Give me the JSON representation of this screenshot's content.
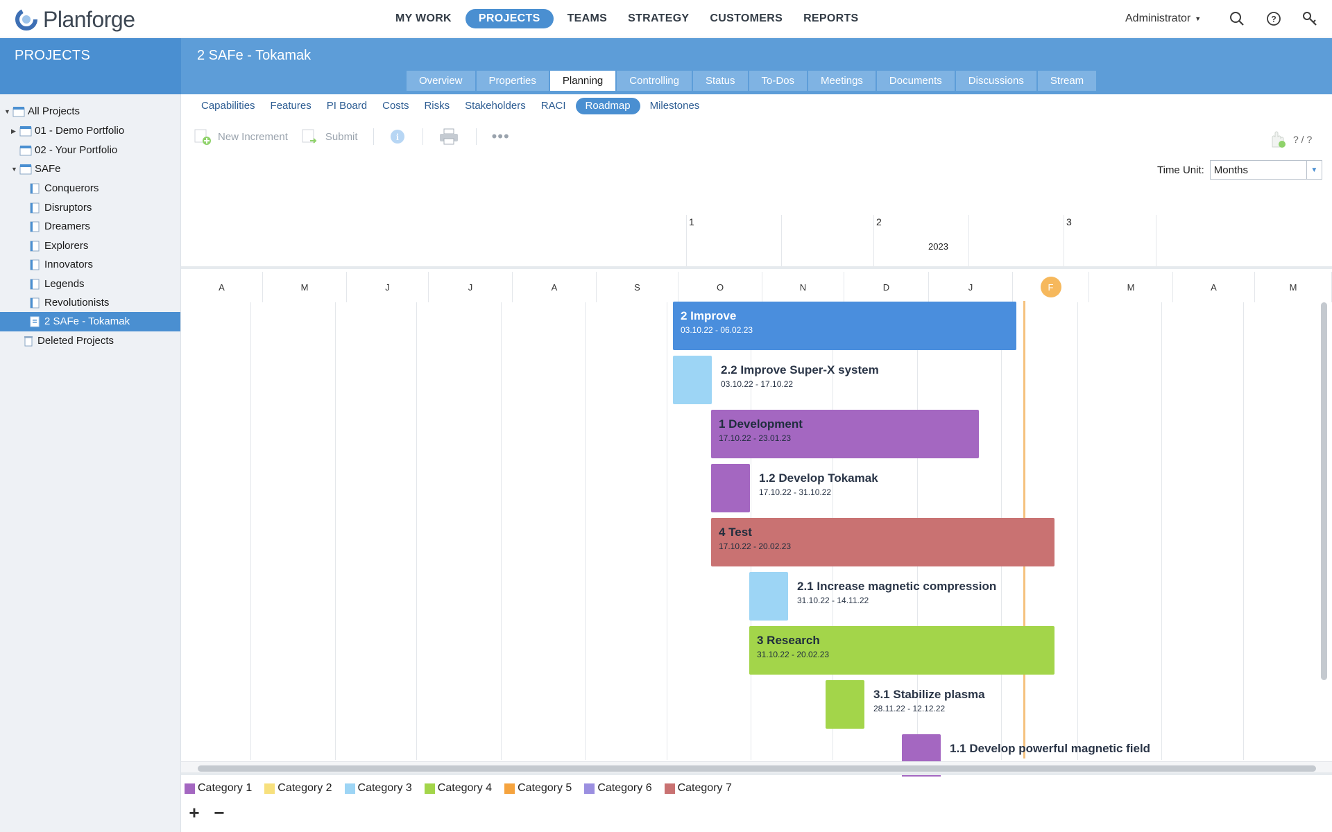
{
  "app": {
    "name": "Planforge"
  },
  "topnav": [
    {
      "label": "MY WORK",
      "active": false
    },
    {
      "label": "PROJECTS",
      "active": true
    },
    {
      "label": "TEAMS",
      "active": false
    },
    {
      "label": "STRATEGY",
      "active": false
    },
    {
      "label": "CUSTOMERS",
      "active": false
    },
    {
      "label": "REPORTS",
      "active": false
    }
  ],
  "user": {
    "label": "Administrator"
  },
  "sidebar": {
    "title": "PROJECTS",
    "items": [
      {
        "label": "All Projects",
        "expanded": true
      },
      {
        "label": "01 - Demo Portfolio",
        "expanded": false
      },
      {
        "label": "02 - Your Portfolio"
      },
      {
        "label": "SAFe",
        "expanded": true
      },
      {
        "label": "Conquerors"
      },
      {
        "label": "Disruptors"
      },
      {
        "label": "Dreamers"
      },
      {
        "label": "Explorers"
      },
      {
        "label": "Innovators"
      },
      {
        "label": "Legends"
      },
      {
        "label": "Revolutionists"
      },
      {
        "label": "2 SAFe - Tokamak",
        "selected": true
      },
      {
        "label": "Deleted Projects"
      }
    ]
  },
  "project": {
    "title": "2 SAFe - Tokamak"
  },
  "tabs": [
    "Overview",
    "Properties",
    "Planning",
    "Controlling",
    "Status",
    "To-Dos",
    "Meetings",
    "Documents",
    "Discussions",
    "Stream"
  ],
  "active_tab": "Planning",
  "subnav": [
    "Capabilities",
    "Features",
    "PI Board",
    "Costs",
    "Risks",
    "Stakeholders",
    "RACI",
    "Roadmap",
    "Milestones"
  ],
  "active_subnav": "Roadmap",
  "toolbar": {
    "new_increment": "New Increment",
    "submit": "Submit",
    "help_count": "? / ?"
  },
  "time_unit": {
    "label": "Time Unit:",
    "value": "Months"
  },
  "timeline": {
    "quarters": [
      "1",
      "2",
      "3"
    ],
    "year": "2023",
    "months": [
      "A",
      "M",
      "J",
      "J",
      "A",
      "S",
      "O",
      "N",
      "D",
      "J",
      "F",
      "M",
      "A",
      "M"
    ],
    "today_month": "F"
  },
  "roadmap_items": [
    {
      "name": "2 Improve",
      "dates": "03.10.22 - 06.02.23",
      "category": 3,
      "color": "#4a8edd"
    },
    {
      "name": "2.2 Improve Super-X system",
      "dates": "03.10.22 - 17.10.22",
      "category": 3,
      "color": "#9dd5f5"
    },
    {
      "name": "1 Development",
      "dates": "17.10.22 - 23.01.23",
      "category": 1,
      "color": "#a467c1"
    },
    {
      "name": "1.2 Develop Tokamak",
      "dates": "17.10.22 - 31.10.22",
      "category": 1,
      "color": "#a467c1"
    },
    {
      "name": "4 Test",
      "dates": "17.10.22 - 20.02.23",
      "category": 7,
      "color": "#c97272"
    },
    {
      "name": "2.1 Increase magnetic compression",
      "dates": "31.10.22 - 14.11.22",
      "category": 3,
      "color": "#9dd5f5"
    },
    {
      "name": "3 Research",
      "dates": "31.10.22 - 20.02.23",
      "category": 4,
      "color": "#a3d54a"
    },
    {
      "name": "3.1 Stabilize plasma",
      "dates": "28.11.22 - 12.12.22",
      "category": 4,
      "color": "#a3d54a"
    },
    {
      "name": "1.1 Develop powerful magnetic field",
      "dates": "",
      "category": 1,
      "color": "#a467c1"
    }
  ],
  "legend": [
    {
      "label": "Category 1",
      "color": "#a467c1"
    },
    {
      "label": "Category 2",
      "color": "#f7e07d"
    },
    {
      "label": "Category 3",
      "color": "#9dd5f5"
    },
    {
      "label": "Category 4",
      "color": "#a3d54a"
    },
    {
      "label": "Category 5",
      "color": "#f5a33e"
    },
    {
      "label": "Category 6",
      "color": "#9b8fe0"
    },
    {
      "label": "Category 7",
      "color": "#c97272"
    }
  ],
  "zoom": {
    "in": "+",
    "out": "−"
  }
}
